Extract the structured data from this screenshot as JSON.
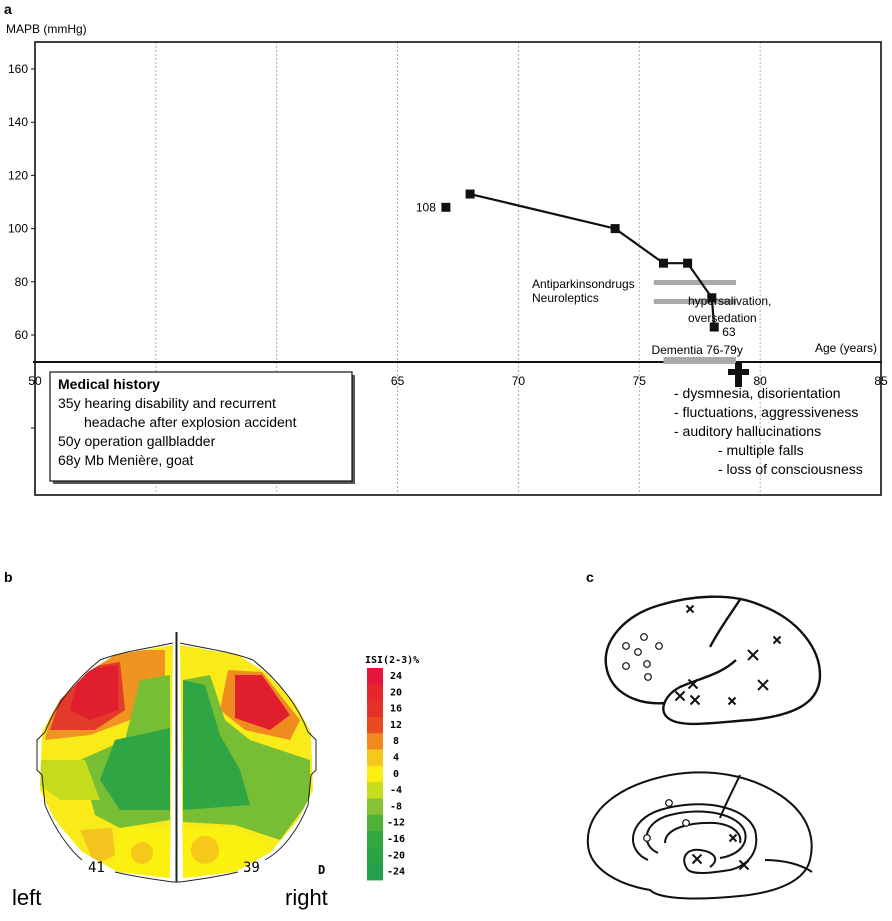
{
  "panel_labels": {
    "a": "a",
    "b": "b",
    "c": "c"
  },
  "chart_data": [
    {
      "type": "line",
      "panel": "a",
      "title": "",
      "xlabel": "Age (years)",
      "ylabel": "MAPB (mmHg)",
      "xlim": [
        50,
        85
      ],
      "ylim": [
        50,
        170
      ],
      "xticks": [
        50,
        55,
        60,
        65,
        70,
        75,
        80,
        85
      ],
      "xtick_labels": [
        "50",
        "",
        "",
        "65",
        "70",
        "75",
        "80",
        "85"
      ],
      "yticks": [
        60,
        80,
        100,
        120,
        140,
        160
      ],
      "ytick_labels": [
        "60",
        "80",
        "100",
        "120",
        "140",
        "160"
      ],
      "grid": "vertical dashed",
      "series": [
        {
          "name": "MAPB",
          "x": [
            67,
            68,
            74,
            76,
            77,
            78,
            78.1
          ],
          "y": [
            108,
            113,
            100,
            87,
            87,
            74,
            63
          ],
          "point_labels": [
            {
              "index": 0,
              "text": "108",
              "side": "left"
            },
            {
              "index": 6,
              "text": "63",
              "side": "right"
            }
          ]
        }
      ],
      "bars": [
        {
          "name": "Antiparkinsondrugs",
          "label": "Antiparkinsondrugs",
          "x_start": 75.6,
          "x_end": 79,
          "y": 80
        },
        {
          "name": "Neuroleptics",
          "label": "Neuroleptics",
          "x_start": 75.6,
          "x_end": 79,
          "y": 72,
          "note": "hypersalivation, oversedation"
        },
        {
          "name": "Dementia",
          "label": "Dementia 76-79y",
          "x_start": 76,
          "x_end": 79,
          "y": 50
        }
      ],
      "annotations": {
        "death_marker_age": 79,
        "death_symbol": "✝",
        "note_lines": [
          "hypersalivation,",
          "oversedation"
        ],
        "symptoms": [
          "- dysmnesia, disorientation",
          "- fluctuations, aggressiveness",
          "- auditory hallucinations",
          "- multiple falls",
          "- loss of consciousness"
        ],
        "medical_history": {
          "title": "Medical history",
          "lines": [
            "35y hearing disability and recurrent",
            "headache after explosion accident",
            "50y operation gallbladder",
            "68y Mb Menière, goat"
          ]
        }
      }
    },
    {
      "type": "heatmap",
      "panel": "b",
      "title": "ISI(2-3)%",
      "legend_ticks": [
        "24",
        "20",
        "16",
        "12",
        "8",
        "4",
        "0",
        "-4",
        "-8",
        "-12",
        "-16",
        "-20",
        "-24"
      ],
      "legend_colors": [
        "#e8153a",
        "#e8242f",
        "#e43228",
        "#e84b22",
        "#f08a1e",
        "#f6c81a",
        "#fbee10",
        "#c9dc1e",
        "#86c232",
        "#4fb138",
        "#33a83e",
        "#2aa444",
        "#22a04a"
      ],
      "hemisphere_labels": [
        "left",
        "right"
      ],
      "electrode_counts": [
        "41",
        "39"
      ],
      "corner_marker": "D"
    },
    {
      "type": "scatter",
      "panel": "c",
      "description": "brain lesion map, lateral and medial views",
      "lateral": {
        "circles": 7,
        "crosses": 9
      },
      "medial": {
        "circles": 3,
        "crosses": 3
      }
    }
  ]
}
